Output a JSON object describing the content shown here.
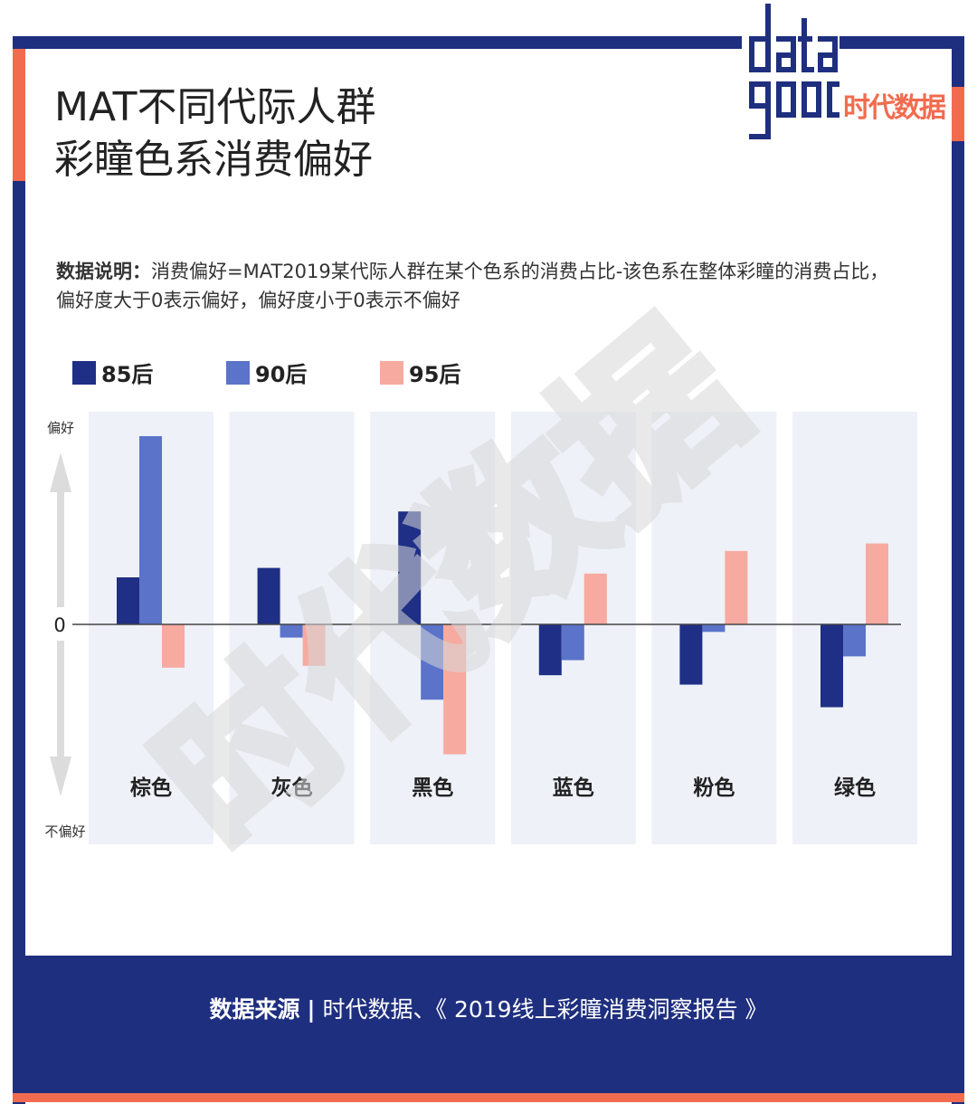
{
  "title": {
    "line1": "MAT不同代际人群",
    "line2": "彩瞳色系消费偏好"
  },
  "logo": {
    "word": "data good",
    "brand": "时代数据"
  },
  "note": {
    "label": "数据说明：",
    "text": "消费偏好=MAT2019某代际人群在某个色系的消费占比-该色系在整体彩瞳的消费占比，偏好度大于0表示偏好，偏好度小于0表示不偏好"
  },
  "footer": {
    "label": "数据来源",
    "separator": "|",
    "text": "时代数据、《 2019线上彩瞳消费洞察报告 》"
  },
  "colors": {
    "navy": "#1f2f7f",
    "accent": "#f26b4f",
    "s85": "#1f2f86",
    "s90": "#5b73c9",
    "s95": "#f7aaa0",
    "panel": "#eef1f8"
  },
  "chart_data": {
    "type": "bar",
    "categories": [
      "棕色",
      "灰色",
      "黑色",
      "蓝色",
      "粉色",
      "绿色"
    ],
    "series": [
      {
        "name": "85后",
        "color": "#1f2f86",
        "values": [
          0.25,
          0.3,
          0.6,
          -0.27,
          -0.32,
          -0.44
        ]
      },
      {
        "name": "90后",
        "color": "#5b73c9",
        "values": [
          1.0,
          -0.07,
          -0.4,
          -0.19,
          -0.04,
          -0.17
        ]
      },
      {
        "name": "95后",
        "color": "#f7aaa0",
        "values": [
          -0.23,
          -0.22,
          -0.69,
          0.27,
          0.39,
          0.43
        ]
      }
    ],
    "ylim": [
      -0.9,
      1.1
    ],
    "zero_label": "0",
    "axis_top_label": "偏好",
    "axis_bottom_label": "不偏好",
    "grid": false,
    "legend_position": "top-left"
  },
  "watermark": "时代数据"
}
